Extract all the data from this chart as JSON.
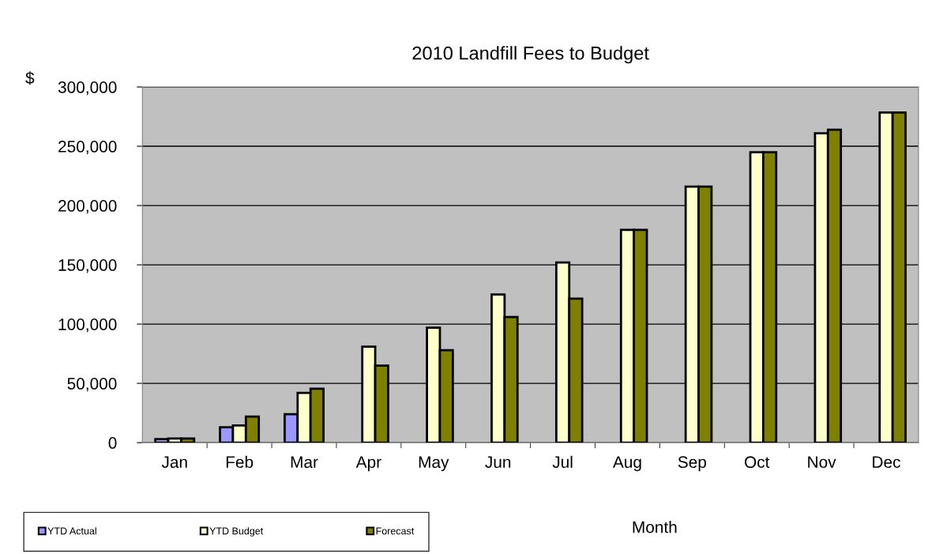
{
  "chart_data": {
    "type": "bar",
    "title": "2010 Landfill Fees to Budget",
    "xlabel": "Month",
    "ylabel": "$",
    "categories": [
      "Jan",
      "Feb",
      "Mar",
      "Apr",
      "May",
      "Jun",
      "Jul",
      "Aug",
      "Sep",
      "Oct",
      "Nov",
      "Dec"
    ],
    "series": [
      {
        "name": "YTD Actual",
        "color": "#9999ff",
        "values": [
          3000,
          13000,
          24000,
          null,
          null,
          null,
          null,
          null,
          null,
          null,
          null,
          null
        ]
      },
      {
        "name": "YTD Budget",
        "color": "#ffffcc",
        "values": [
          3500,
          14500,
          42000,
          81000,
          97000,
          125000,
          152000,
          179500,
          216000,
          245000,
          261000,
          278500
        ]
      },
      {
        "name": "Forecast",
        "color": "#808000",
        "values": [
          3500,
          22000,
          45500,
          65000,
          78000,
          106000,
          121500,
          179500,
          216000,
          245000,
          264000,
          278500
        ]
      }
    ],
    "ylim": [
      0,
      300000
    ],
    "yticks": [
      {
        "value": 0,
        "label": "0"
      },
      {
        "value": 50000,
        "label": "50,000"
      },
      {
        "value": 100000,
        "label": "100,000"
      },
      {
        "value": 150000,
        "label": "150,000"
      },
      {
        "value": 200000,
        "label": "200,000"
      },
      {
        "value": 250000,
        "label": "250,000"
      },
      {
        "value": 300000,
        "label": "300,000"
      }
    ],
    "grid": "y",
    "legend": "bottom left"
  }
}
